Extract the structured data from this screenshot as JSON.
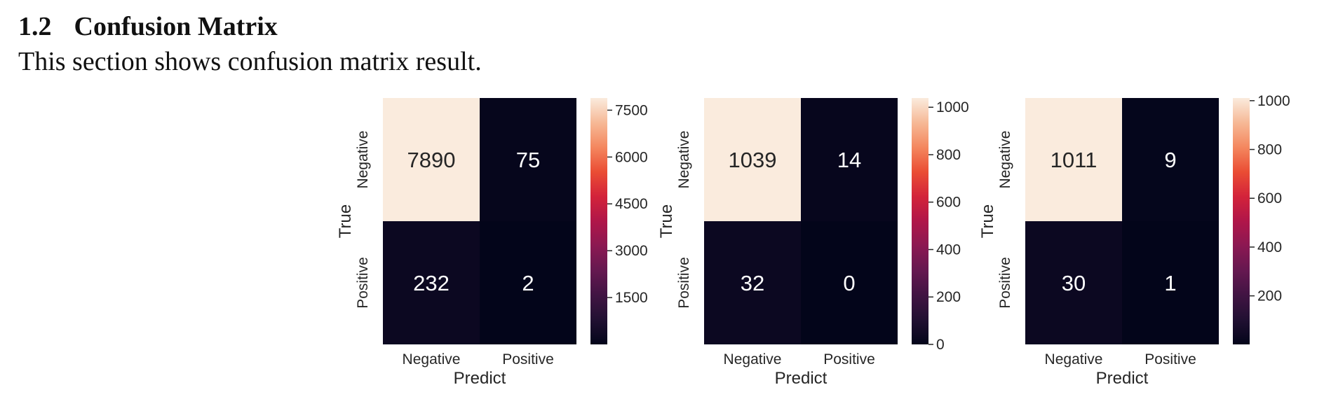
{
  "section": {
    "number": "1.2",
    "title": "Confusion Matrix",
    "description": "This section shows confusion matrix result."
  },
  "chart_data": [
    {
      "type": "heatmap",
      "xlabel": "Predict",
      "ylabel": "True",
      "x_categories": [
        "Negative",
        "Positive"
      ],
      "y_categories": [
        "Negative",
        "Positive"
      ],
      "values": [
        [
          7890,
          75
        ],
        [
          232,
          2
        ]
      ],
      "colorbar": {
        "range": [
          0,
          7890
        ],
        "ticks": [
          1500,
          3000,
          4500,
          6000,
          7500
        ]
      },
      "colormap": "rocket"
    },
    {
      "type": "heatmap",
      "xlabel": "Predict",
      "ylabel": "True",
      "x_categories": [
        "Negative",
        "Positive"
      ],
      "y_categories": [
        "Negative",
        "Positive"
      ],
      "values": [
        [
          1039,
          14
        ],
        [
          32,
          0
        ]
      ],
      "colorbar": {
        "range": [
          0,
          1039
        ],
        "ticks": [
          0,
          200,
          400,
          600,
          800,
          1000
        ]
      },
      "colormap": "rocket"
    },
    {
      "type": "heatmap",
      "xlabel": "Predict",
      "ylabel": "True",
      "x_categories": [
        "Negative",
        "Positive"
      ],
      "y_categories": [
        "Negative",
        "Positive"
      ],
      "values": [
        [
          1011,
          9
        ],
        [
          30,
          1
        ]
      ],
      "colorbar": {
        "range": [
          1,
          1011
        ],
        "ticks": [
          200,
          400,
          600,
          800,
          1000
        ]
      },
      "colormap": "rocket"
    }
  ]
}
